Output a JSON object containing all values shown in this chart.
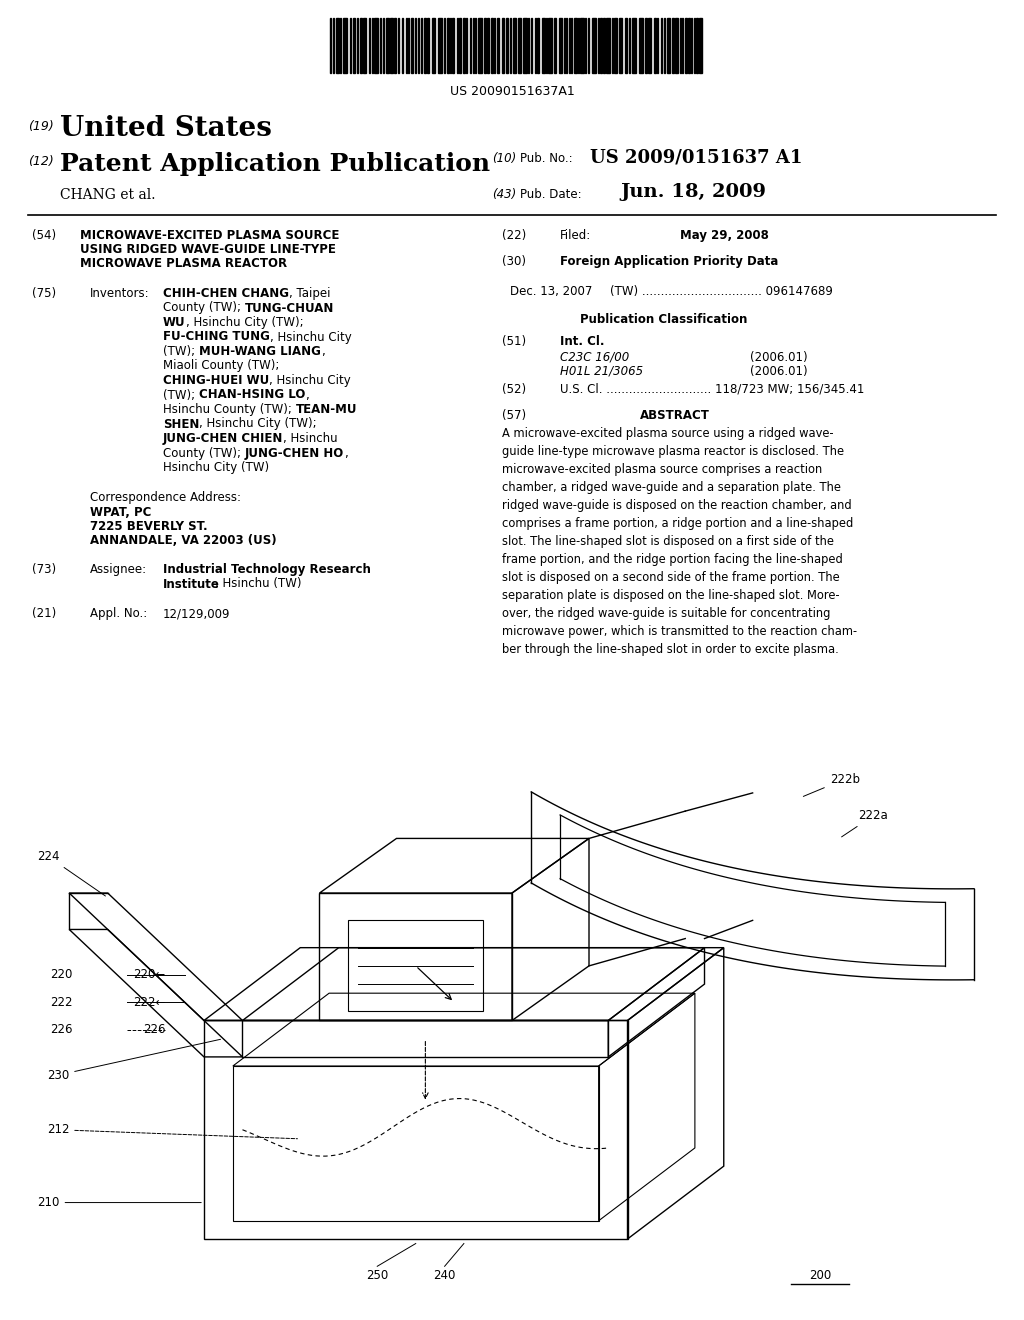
{
  "bg_color": "#ffffff",
  "barcode_text": "US 20090151637A1",
  "pub_number": "US 2009/0151637 A1",
  "pub_date_label": "Jun. 18, 2009",
  "country": "United States",
  "patent_type": "Patent Application Publication",
  "applicant": "CHANG et al.",
  "pub_no_label": "(10) Pub. No.:",
  "pub_date_num": "(43) Pub. Date:",
  "label_19": "(19)",
  "label_12": "(12)"
}
